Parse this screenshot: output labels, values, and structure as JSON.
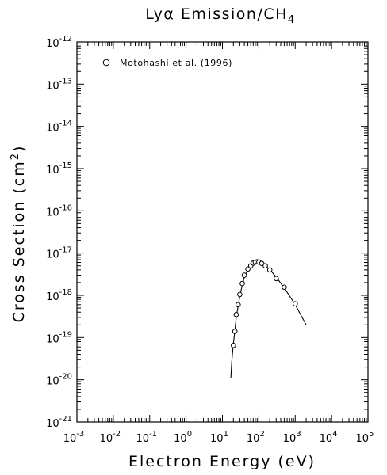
{
  "chart_data": {
    "type": "scatter",
    "title": "Lyα Emission/CH",
    "title_subscript": "4",
    "xlabel": "Electron Energy (eV)",
    "ylabel": "Cross Section (cm",
    "ylabel_superscript": "2",
    "ylabel_suffix": ")",
    "xscale": "log",
    "yscale": "log",
    "xlim": [
      0.001,
      100000
    ],
    "ylim": [
      1e-21,
      1e-12
    ],
    "x_tick_exponents": [
      -3,
      -2,
      -1,
      0,
      1,
      2,
      3,
      4,
      5
    ],
    "y_tick_exponents": [
      -21,
      -20,
      -19,
      -18,
      -17,
      -16,
      -15,
      -14,
      -13,
      -12
    ],
    "tick_base": "10",
    "legend_placement": "top-left",
    "series": [
      {
        "name": "Motohashi et al. (1996)",
        "marker": "open-circle",
        "x": [
          20,
          22,
          24,
          27,
          30,
          35,
          40,
          50,
          60,
          70,
          80,
          90,
          100,
          120,
          150,
          200,
          300,
          500,
          1000
        ],
        "y": [
          6.5e-20,
          1.4e-19,
          3.5e-19,
          6e-19,
          1.05e-18,
          1.9e-18,
          3e-18,
          4.2e-18,
          5e-18,
          5.8e-18,
          6.1e-18,
          6.2e-18,
          6.1e-18,
          5.7e-18,
          5e-18,
          4e-18,
          2.5e-18,
          1.55e-18,
          6.3e-19
        ]
      },
      {
        "name": "",
        "line": "solid",
        "x": [
          17,
          18,
          19,
          20,
          22,
          24,
          27,
          30,
          35,
          40,
          50,
          60,
          70,
          80,
          90,
          100,
          120,
          150,
          200,
          300,
          500,
          1000,
          2000
        ],
        "y": [
          1.1e-20,
          2.6e-20,
          4.5e-20,
          7e-20,
          1.5e-19,
          3e-19,
          5.6e-19,
          9.5e-19,
          1.75e-18,
          2.7e-18,
          4e-18,
          5e-18,
          5.6e-18,
          5.95e-18,
          6.1e-18,
          6.1e-18,
          5.8e-18,
          5.1e-18,
          4.1e-18,
          2.7e-18,
          1.5e-18,
          6e-19,
          2e-19
        ]
      }
    ]
  }
}
